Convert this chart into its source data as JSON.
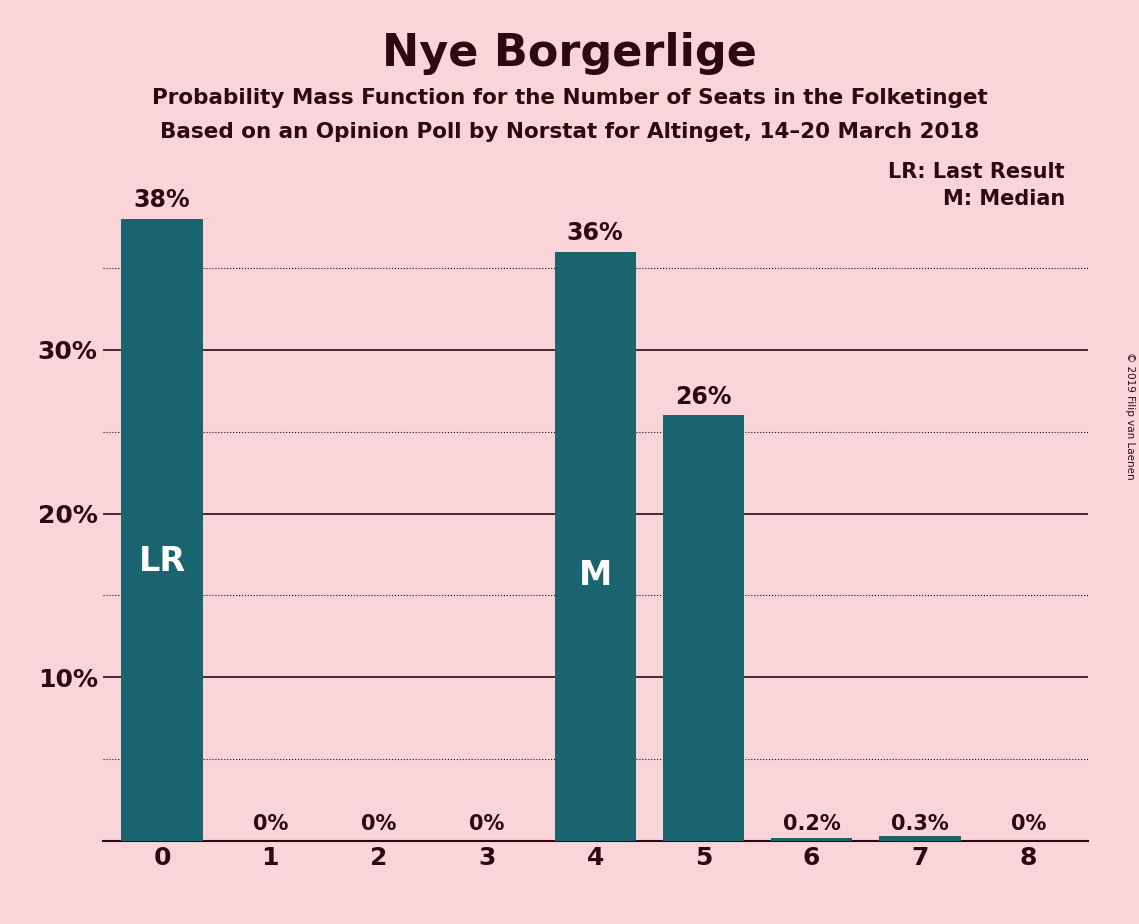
{
  "title": "Nye Borgerlige",
  "subtitle1": "Probability Mass Function for the Number of Seats in the Folketinget",
  "subtitle2": "Based on an Opinion Poll by Norstat for Altinget, 14–20 March 2018",
  "copyright": "© 2019 Filip van Laenen",
  "legend_lr": "LR: Last Result",
  "legend_m": "M: Median",
  "categories": [
    0,
    1,
    2,
    3,
    4,
    5,
    6,
    7,
    8
  ],
  "values": [
    0.38,
    0.0,
    0.0,
    0.0,
    0.36,
    0.26,
    0.002,
    0.003,
    0.0
  ],
  "bar_labels": [
    "38%",
    "0%",
    "0%",
    "0%",
    "36%",
    "26%",
    "0.2%",
    "0.3%",
    "0%"
  ],
  "bar_color": "#1a6470",
  "background_color": "#f9d5d9",
  "text_color": "#2d0a12",
  "lr_bar": 0,
  "median_bar": 4,
  "solid_yticks": [
    0.1,
    0.2,
    0.3
  ],
  "dotted_yticks": [
    0.05,
    0.15,
    0.25,
    0.35
  ],
  "ytick_positions": [
    0.1,
    0.2,
    0.3
  ],
  "ytick_labels": [
    "10%",
    "20%",
    "30%"
  ],
  "ylim": [
    0,
    0.415
  ],
  "bar_width": 0.75
}
